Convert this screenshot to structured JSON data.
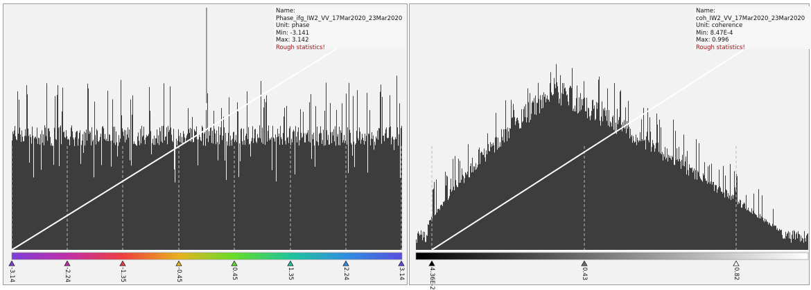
{
  "panels": [
    {
      "id": "left",
      "info": {
        "name": "Name: Phase_ifg_IW2_VV_17Mar2020_23Mar2020",
        "unit": "Unit: phase",
        "min": "Min: -3.141",
        "max": "Max: 3.142",
        "warning": "Rough statistics!"
      },
      "sliders": [
        {
          "label": "-3.14",
          "color": "#7c3fd8",
          "value": -3.14
        },
        {
          "label": "-2.24",
          "color": "#c12ea8",
          "value": -2.24
        },
        {
          "label": "-1.35",
          "color": "#ee3f3f",
          "value": -1.35
        },
        {
          "label": "-0.45",
          "color": "#e8b21c",
          "value": -0.45
        },
        {
          "label": "0.45",
          "color": "#64dd2b",
          "value": 0.45
        },
        {
          "label": "1.35",
          "color": "#1ec49a",
          "value": 1.35
        },
        {
          "label": "2.24",
          "color": "#2f8fe0",
          "value": 2.24
        },
        {
          "label": "3.14",
          "color": "#5a4fe0",
          "value": 3.14
        }
      ],
      "gradient_colors": [
        "#7c3fd8",
        "#c12ea8",
        "#ee3f3f",
        "#e8b21c",
        "#64dd2b",
        "#1ec49a",
        "#2f8fe0",
        "#5a4fe0"
      ]
    },
    {
      "id": "right",
      "info": {
        "name": "Name: coh_IW2_VV_17Mar2020_23Mar2020",
        "unit": "Unit: coherence",
        "min": "Min: 8.47E-4",
        "max": "Max: 0.996",
        "warning": "Rough statistics!"
      },
      "sliders": [
        {
          "label": "4.36E-2",
          "color": "#000000",
          "value": 0.0436
        },
        {
          "label": "0.43",
          "color": "#6e6e6e",
          "value": 0.43
        },
        {
          "label": "0.82",
          "color": "#ffffff",
          "value": 0.82
        }
      ],
      "gradient_colors": [
        "#000000",
        "#ffffff"
      ]
    }
  ],
  "colors": {
    "bars": "#3d3d3d",
    "background": "#f2f2f2",
    "warning": "#a01010"
  }
}
